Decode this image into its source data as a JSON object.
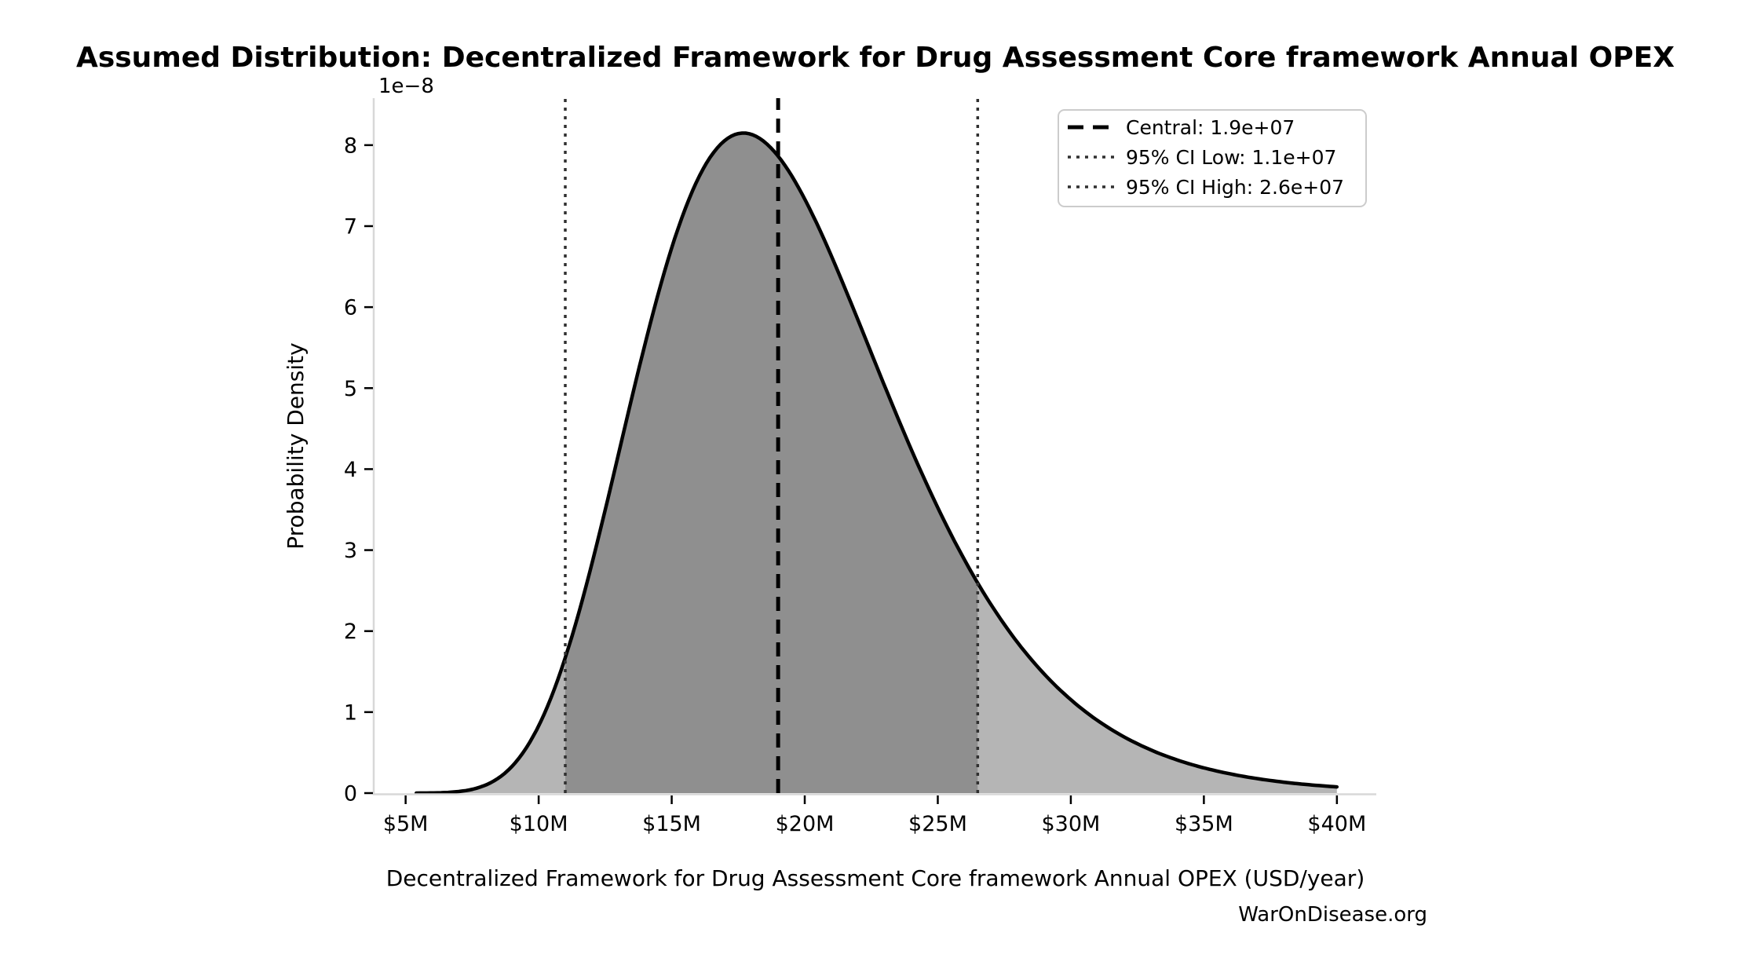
{
  "title": "Assumed Distribution: Decentralized Framework for Drug Assessment Core framework Annual OPEX",
  "watermark": "WarOnDisease.org",
  "chart_data": {
    "type": "area",
    "title": "Assumed Distribution: Decentralized Framework for Drug Assessment Core framework Annual OPEX",
    "xlabel": "Decentralized Framework for Drug Assessment Core framework Annual OPEX (USD/year)",
    "ylabel": "Probability Density",
    "y_offset_label": "1e−8",
    "y_scale": 1e-08,
    "grid": false,
    "xlim_usd": [
      3830000,
      41480000
    ],
    "ylim_density": [
      0,
      8.58e-08
    ],
    "x_ticks": [
      {
        "value": 5000000,
        "label": "$5M"
      },
      {
        "value": 10000000,
        "label": "$10M"
      },
      {
        "value": 15000000,
        "label": "$15M"
      },
      {
        "value": 20000000,
        "label": "$20M"
      },
      {
        "value": 25000000,
        "label": "$25M"
      },
      {
        "value": 30000000,
        "label": "$30M"
      },
      {
        "value": 35000000,
        "label": "$35M"
      },
      {
        "value": 40000000,
        "label": "$40M"
      }
    ],
    "y_ticks": [
      {
        "value": 0,
        "label": "0"
      },
      {
        "value": 1e-08,
        "label": "1"
      },
      {
        "value": 2e-08,
        "label": "2"
      },
      {
        "value": 3e-08,
        "label": "3"
      },
      {
        "value": 4e-08,
        "label": "4"
      },
      {
        "value": 5e-08,
        "label": "5"
      },
      {
        "value": 6e-08,
        "label": "6"
      },
      {
        "value": 7e-08,
        "label": "7"
      },
      {
        "value": 8e-08,
        "label": "8"
      }
    ],
    "distribution": {
      "type": "lognormal",
      "median_usd": 19000000,
      "sigma_ln": 0.267,
      "curve_x_start_usd": 5400000,
      "curve_x_end_usd": 40000000,
      "peak_x_usd": 17640000,
      "peak_density": 8.15e-08
    },
    "curve_points": [
      [
        5500000,
        6e-11
      ],
      [
        7500000,
        4.6e-10
      ],
      [
        10000000,
        8.3e-09
      ],
      [
        11000000,
        1.67e-08
      ],
      [
        12500000,
        3.5e-08
      ],
      [
        15000000,
        6.73e-08
      ],
      [
        17500000,
        8.14e-08
      ],
      [
        19000000,
        7.86e-08
      ],
      [
        20000000,
        7.33e-08
      ],
      [
        22500000,
        5.43e-08
      ],
      [
        25000000,
        3.53e-08
      ],
      [
        26500000,
        2.59e-08
      ],
      [
        30000000,
        1.15e-08
      ],
      [
        32500000,
        6.1e-09
      ],
      [
        35000000,
        3.1e-09
      ],
      [
        37500000,
        1.6e-09
      ],
      [
        40000000,
        7.7e-10
      ]
    ],
    "markers": {
      "central": {
        "value_usd": 19000000,
        "label": "Central: 1.9e+07",
        "line_style": "dashed",
        "color": "#000000"
      },
      "ci_low": {
        "value_usd": 11000000,
        "label": "95% CI Low: 1.1e+07",
        "line_style": "dotted",
        "color": "#303030"
      },
      "ci_high": {
        "value_usd": 26500000,
        "label": "95% CI High: 2.6e+07",
        "line_style": "dotted",
        "color": "#303030"
      }
    },
    "ci_band": {
      "from_usd": 11000000,
      "to_usd": 26500000
    },
    "legend": {
      "position": "upper right",
      "entries": [
        {
          "label": "Central: 1.9e+07",
          "line_style": "dashed",
          "color": "#000000"
        },
        {
          "label": "95% CI Low: 1.1e+07",
          "line_style": "dotted",
          "color": "#303030"
        },
        {
          "label": "95% CI High: 2.6e+07",
          "line_style": "dotted",
          "color": "#303030"
        }
      ]
    },
    "colors": {
      "curve": "#000000",
      "fill_outer": "#b5b5b5",
      "fill_ci": "#8f8f8f",
      "spine": "#d8d8d8",
      "tick": "#000000",
      "text": "#000000",
      "watermark": "#444444",
      "legend_border": "#cccccc",
      "legend_bg": "#ffffff",
      "background": "#ffffff"
    }
  }
}
